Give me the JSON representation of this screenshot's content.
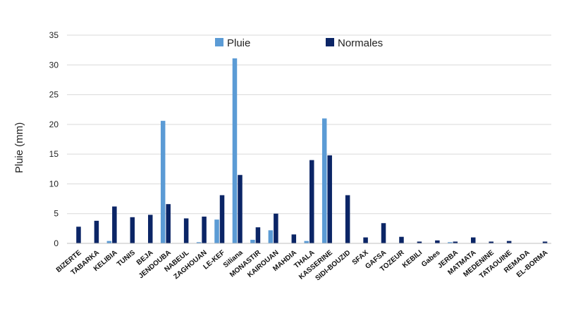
{
  "chart_data": {
    "type": "bar",
    "title": "",
    "xlabel": "",
    "ylabel": "Pluie (mm)",
    "ylim": [
      0,
      35
    ],
    "yticks": [
      0,
      5,
      10,
      15,
      20,
      25,
      30,
      35
    ],
    "grid": true,
    "legend_position": "top-center",
    "categories": [
      "BIZERTE",
      "TABARKA",
      "KELIBIA",
      "TUNIS",
      "BEJA",
      "JENDOUBA",
      "NABEUL",
      "ZAGHOUAN",
      "LE-KEF",
      "Siliana",
      "MONASTIR",
      "KAIROUAN",
      "MAHDIA",
      "THALA",
      "KASSERINE",
      "SIDI-BOUZID",
      "SFAX",
      "GAFSA",
      "TOZEUR",
      "KEBILI",
      "Gabes",
      "JERBA",
      "MATMATA",
      "MEDENINE",
      "TATAOUINE",
      "REMADA",
      "EL-BORMA"
    ],
    "series": [
      {
        "name": "Pluie",
        "color": "#5b9bd5",
        "values": [
          0,
          0,
          0.4,
          0,
          0,
          20.6,
          0,
          0.2,
          4.0,
          31.1,
          0.6,
          2.2,
          0,
          0.4,
          21.0,
          0,
          0,
          0,
          0,
          0,
          0,
          0.2,
          0,
          0,
          0,
          0,
          0
        ]
      },
      {
        "name": "Normales",
        "color": "#0b2566",
        "values": [
          2.8,
          3.8,
          6.2,
          4.4,
          4.8,
          6.6,
          4.2,
          4.5,
          8.1,
          11.5,
          2.7,
          5.0,
          1.5,
          14.0,
          14.8,
          8.1,
          1.0,
          3.4,
          1.1,
          0.3,
          0.5,
          0.3,
          1.0,
          0.3,
          0.4,
          0,
          0.3
        ]
      }
    ]
  }
}
